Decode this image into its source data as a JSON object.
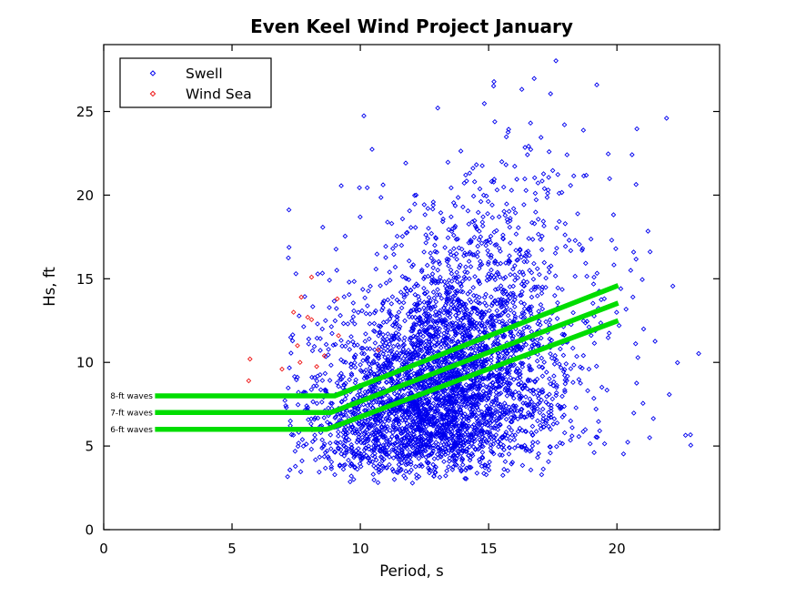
{
  "figure": {
    "background": "#ffffff",
    "axis_color": "#000000"
  },
  "chart_data": {
    "type": "scatter",
    "title": "Even Keel Wind Project January",
    "xlabel": "Period, s",
    "ylabel": "Hs, ft",
    "xlim": [
      0,
      24
    ],
    "ylim": [
      0,
      29
    ],
    "x_ticks": [
      0,
      5,
      10,
      15,
      20
    ],
    "y_ticks": [
      0,
      5,
      10,
      15,
      20,
      25
    ],
    "grid": false,
    "box": true,
    "legend": {
      "position": "top-left",
      "border_color": "#000000",
      "background": "#ffffff"
    },
    "series": [
      {
        "name": "Swell",
        "marker": "open-diamond",
        "color": "#0000ee",
        "note": "dense cloud of several thousand hourly sea-state points; reproduced via seeded generator matching observed distribution",
        "generator": {
          "seed": 20240117,
          "count": 4000,
          "hs": {
            "dist": "erlang3",
            "scale": 2.35,
            "offset": 2.5,
            "max": 28.6
          },
          "period": {
            "base": 12.9,
            "slope_vs_hs": 0.21,
            "hs_ref": 8,
            "sd": 2.05,
            "wide_sd": 4.2,
            "wide_frac": 0.18,
            "min": 7.0,
            "max": 23.6
          }
        }
      },
      {
        "name": "Wind Sea",
        "marker": "open-diamond",
        "color": "#ee1414",
        "points": [
          [
            8.1,
            15.1
          ],
          [
            7.7,
            13.9
          ],
          [
            9.1,
            13.8
          ],
          [
            7.4,
            13.0
          ],
          [
            7.95,
            12.7
          ],
          [
            8.1,
            12.55
          ],
          [
            9.15,
            11.6
          ],
          [
            7.55,
            11.0
          ],
          [
            5.7,
            10.2
          ],
          [
            7.65,
            10.0
          ],
          [
            6.95,
            9.6
          ],
          [
            5.65,
            8.9
          ],
          [
            10.7,
            10.75
          ],
          [
            8.6,
            10.4
          ],
          [
            8.3,
            9.75
          ]
        ]
      }
    ],
    "reference_lines": [
      {
        "label": "8-ft waves",
        "color": "#00dd00",
        "points": [
          [
            2.0,
            8.0
          ],
          [
            9.0,
            8.0
          ],
          [
            20.05,
            14.6
          ]
        ]
      },
      {
        "label": "7-ft waves",
        "color": "#00dd00",
        "points": [
          [
            2.0,
            7.0
          ],
          [
            8.85,
            7.0
          ],
          [
            20.05,
            13.55
          ]
        ]
      },
      {
        "label": "6-ft waves",
        "color": "#00dd00",
        "points": [
          [
            2.0,
            6.0
          ],
          [
            8.7,
            6.0
          ],
          [
            20.05,
            12.5
          ]
        ]
      }
    ]
  }
}
